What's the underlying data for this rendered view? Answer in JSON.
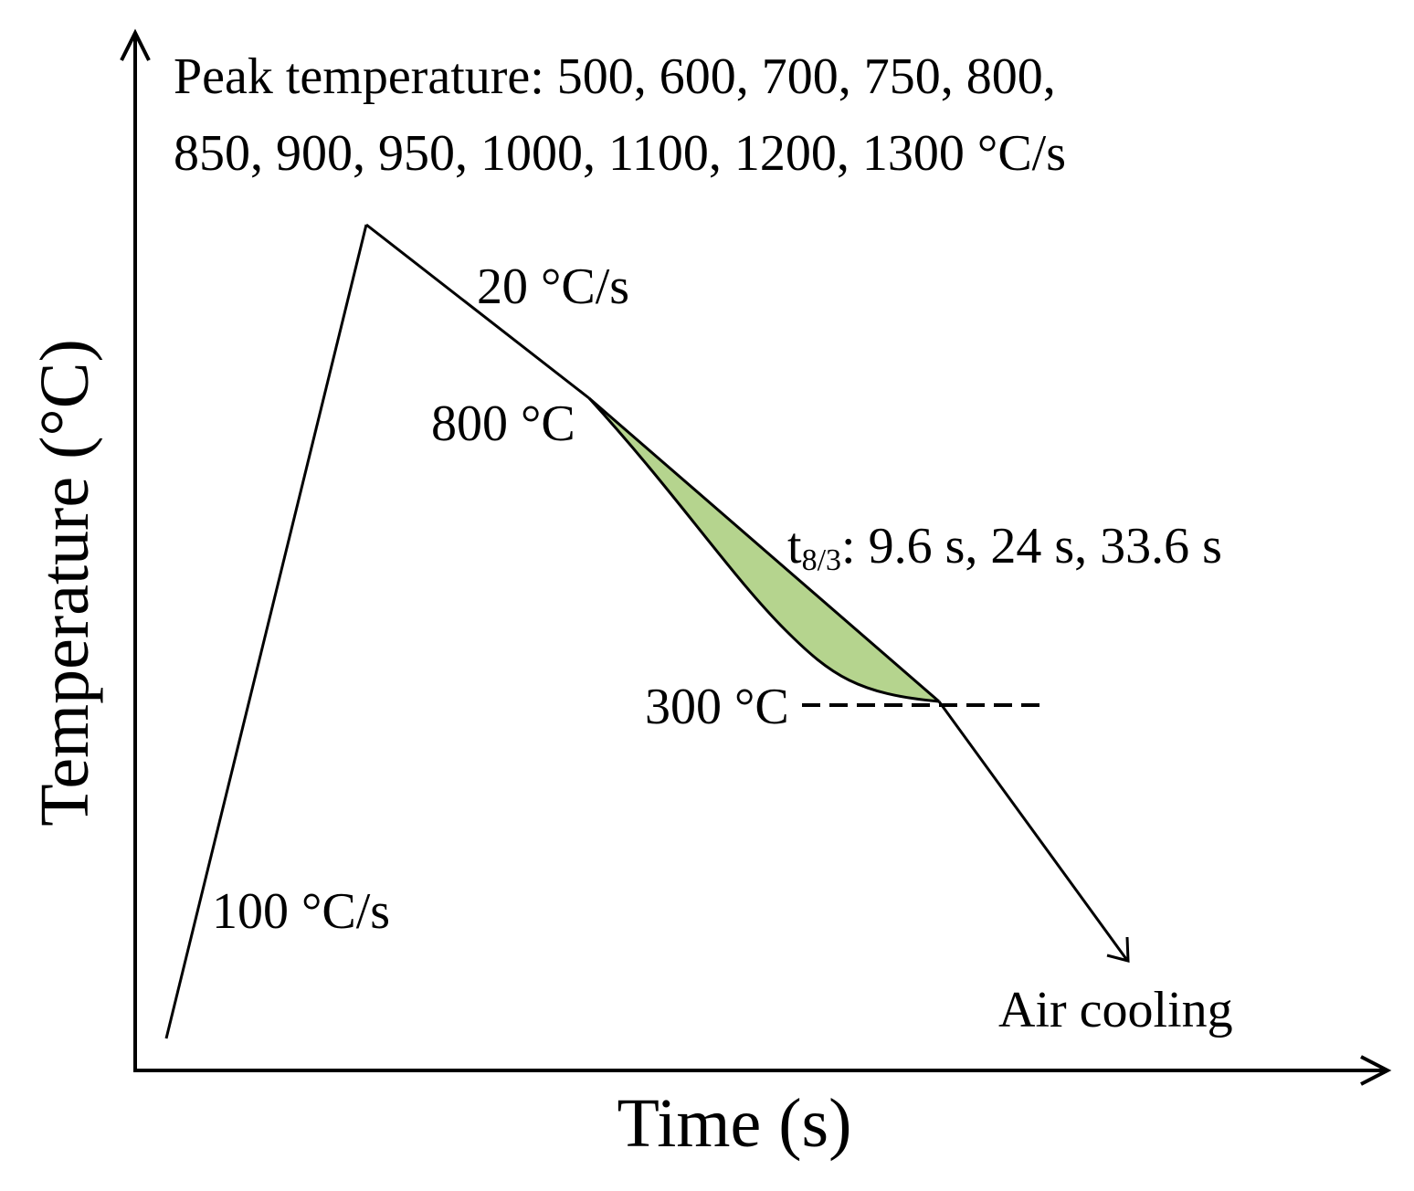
{
  "diagram": {
    "peak_temperature_line1": "Peak temperature: 500, 600, 700, 750, 800,",
    "peak_temperature_line2": "850, 900, 950, 1000, 1100, 1200, 1300 °C/s",
    "heating_rate": "100 °C/s",
    "initial_cooling_rate": "20 °C/s",
    "upper_temperature": "800 °C",
    "lower_temperature": "300 °C",
    "t83_symbol": "t",
    "t83_subscript": "8/3",
    "t83_values": ": 9.6 s, 24 s, 33.6 s",
    "final_stage": "Air cooling",
    "x_axis_title": "Time (s)",
    "y_axis_title": "Temperature (°C)"
  },
  "colors": {
    "t83_fill": "#b5d48e",
    "line": "#000000"
  }
}
